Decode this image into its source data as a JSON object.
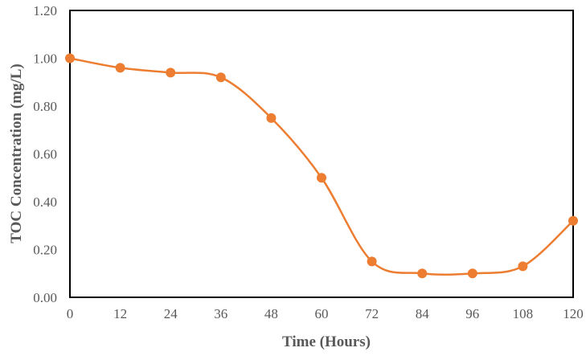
{
  "chart_data": {
    "type": "line",
    "title": "",
    "xlabel": "Time (Hours)",
    "ylabel": "TOC Concentration (mg/L)",
    "x": [
      0,
      12,
      24,
      36,
      48,
      60,
      72,
      84,
      96,
      108,
      120
    ],
    "series": [
      {
        "name": "TOC",
        "values": [
          1.0,
          0.96,
          0.94,
          0.92,
          0.75,
          0.5,
          0.15,
          0.1,
          0.1,
          0.13,
          0.32
        ],
        "color": "#ED7D31"
      }
    ],
    "xlim": [
      0,
      120
    ],
    "ylim": [
      0,
      1.2
    ],
    "xticks": [
      "0",
      "12",
      "24",
      "36",
      "48",
      "60",
      "72",
      "84",
      "96",
      "108",
      "120"
    ],
    "yticks": [
      "0.00",
      "0.20",
      "0.40",
      "0.60",
      "0.80",
      "1.00",
      "1.20"
    ],
    "grid": false,
    "legend": "none",
    "smooth": true
  }
}
